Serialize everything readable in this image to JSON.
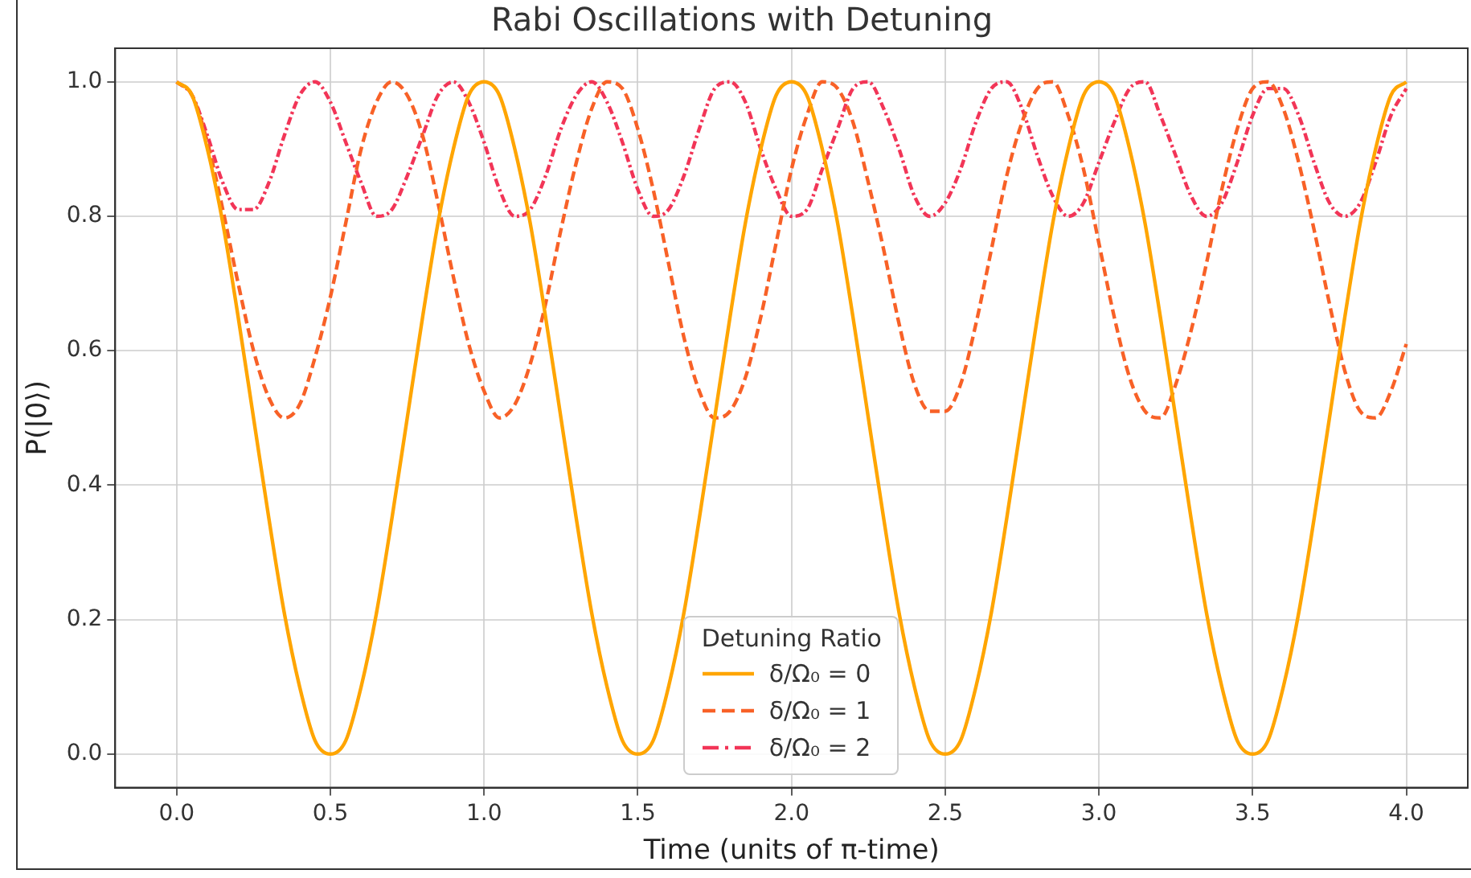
{
  "chart_data": {
    "type": "line",
    "title": "Rabi Oscillations with Detuning",
    "xlabel": "Time (units of π-time)",
    "ylabel": "P(|0⟩)",
    "legend_title": "Detuning Ratio",
    "x": [
      0,
      0.05,
      0.1,
      0.15,
      0.2,
      0.25,
      0.3,
      0.35,
      0.4,
      0.45,
      0.5,
      0.55,
      0.6,
      0.65,
      0.7,
      0.75,
      0.8,
      0.85,
      0.9,
      0.95,
      1,
      1.05,
      1.1,
      1.15,
      1.2,
      1.25,
      1.3,
      1.35,
      1.4,
      1.45,
      1.5,
      1.55,
      1.6,
      1.65,
      1.7,
      1.75,
      1.8,
      1.85,
      1.9,
      1.95,
      2,
      2.05,
      2.1,
      2.15,
      2.2,
      2.25,
      2.3,
      2.35,
      2.4,
      2.45,
      2.5,
      2.55,
      2.6,
      2.65,
      2.7,
      2.75,
      2.8,
      2.85,
      2.9,
      2.95,
      3,
      3.05,
      3.1,
      3.15,
      3.2,
      3.25,
      3.3,
      3.35,
      3.4,
      3.45,
      3.5,
      3.55,
      3.6,
      3.65,
      3.7,
      3.75,
      3.8,
      3.85,
      3.9,
      3.95,
      4
    ],
    "series": [
      {
        "name": "δ/Ω₀ = 0",
        "color": "#ffa500",
        "line_style": "solid",
        "values": [
          1,
          0.98,
          0.9,
          0.79,
          0.65,
          0.5,
          0.35,
          0.21,
          0.1,
          0.02,
          0,
          0.02,
          0.1,
          0.21,
          0.35,
          0.5,
          0.65,
          0.79,
          0.9,
          0.98,
          1,
          0.98,
          0.9,
          0.79,
          0.65,
          0.5,
          0.35,
          0.21,
          0.1,
          0.02,
          0,
          0.02,
          0.1,
          0.21,
          0.35,
          0.5,
          0.65,
          0.79,
          0.9,
          0.98,
          1,
          0.98,
          0.9,
          0.79,
          0.65,
          0.5,
          0.35,
          0.21,
          0.1,
          0.02,
          0,
          0.02,
          0.1,
          0.21,
          0.35,
          0.5,
          0.65,
          0.79,
          0.9,
          0.98,
          1,
          0.98,
          0.9,
          0.79,
          0.65,
          0.5,
          0.35,
          0.21,
          0.1,
          0.02,
          0,
          0.02,
          0.1,
          0.21,
          0.35,
          0.5,
          0.65,
          0.79,
          0.9,
          0.98,
          1
        ]
      },
      {
        "name": "δ/Ω₀ = 1",
        "color": "#f86127",
        "line_style": "dashed",
        "values": [
          1,
          0.98,
          0.91,
          0.81,
          0.7,
          0.6,
          0.53,
          0.5,
          0.52,
          0.59,
          0.68,
          0.79,
          0.9,
          0.97,
          1,
          0.98,
          0.92,
          0.82,
          0.71,
          0.61,
          0.54,
          0.5,
          0.52,
          0.58,
          0.67,
          0.78,
          0.88,
          0.96,
          1,
          0.99,
          0.93,
          0.84,
          0.73,
          0.62,
          0.54,
          0.5,
          0.51,
          0.56,
          0.65,
          0.76,
          0.87,
          0.95,
          1,
          0.99,
          0.94,
          0.85,
          0.75,
          0.64,
          0.55,
          0.51,
          0.51,
          0.55,
          0.64,
          0.75,
          0.86,
          0.94,
          0.99,
          1,
          0.95,
          0.87,
          0.76,
          0.65,
          0.56,
          0.51,
          0.5,
          0.55,
          0.63,
          0.73,
          0.84,
          0.93,
          0.99,
          1,
          0.96,
          0.88,
          0.78,
          0.67,
          0.57,
          0.51,
          0.5,
          0.54,
          0.61
        ]
      },
      {
        "name": "δ/Ω₀ = 2",
        "color": "#f23557",
        "line_style": "dashdot",
        "values": [
          1,
          0.98,
          0.92,
          0.85,
          0.81,
          0.81,
          0.85,
          0.92,
          0.98,
          1,
          0.97,
          0.91,
          0.85,
          0.8,
          0.81,
          0.86,
          0.92,
          0.98,
          1,
          0.97,
          0.91,
          0.84,
          0.8,
          0.81,
          0.86,
          0.93,
          0.98,
          1,
          0.97,
          0.91,
          0.84,
          0.8,
          0.81,
          0.86,
          0.93,
          0.99,
          1,
          0.97,
          0.9,
          0.84,
          0.8,
          0.81,
          0.87,
          0.93,
          0.99,
          1,
          0.96,
          0.9,
          0.83,
          0.8,
          0.82,
          0.87,
          0.94,
          0.99,
          1,
          0.96,
          0.89,
          0.83,
          0.8,
          0.82,
          0.88,
          0.94,
          0.99,
          1,
          0.95,
          0.89,
          0.83,
          0.8,
          0.82,
          0.88,
          0.95,
          0.99,
          0.99,
          0.95,
          0.88,
          0.82,
          0.8,
          0.82,
          0.88,
          0.95,
          0.99
        ]
      }
    ],
    "xlim": [
      -0.2,
      4.2
    ],
    "xticks": [
      {
        "value": 0,
        "label": "0.0"
      },
      {
        "value": 0.5,
        "label": "0.5"
      },
      {
        "value": 1,
        "label": "1.0"
      },
      {
        "value": 1.5,
        "label": "1.5"
      },
      {
        "value": 2,
        "label": "2.0"
      },
      {
        "value": 2.5,
        "label": "2.5"
      },
      {
        "value": 3,
        "label": "3.0"
      },
      {
        "value": 3.5,
        "label": "3.5"
      },
      {
        "value": 4,
        "label": "4.0"
      }
    ],
    "ylim": [
      -0.05,
      1.05
    ],
    "yticks": [
      {
        "value": 0,
        "label": "0.0"
      },
      {
        "value": 0.2,
        "label": "0.2"
      },
      {
        "value": 0.4,
        "label": "0.4"
      },
      {
        "value": 0.6,
        "label": "0.6"
      },
      {
        "value": 0.8,
        "label": "0.8"
      },
      {
        "value": 1,
        "label": "1.0"
      }
    ],
    "grid": true,
    "legend": "bottom",
    "marker": "none"
  }
}
